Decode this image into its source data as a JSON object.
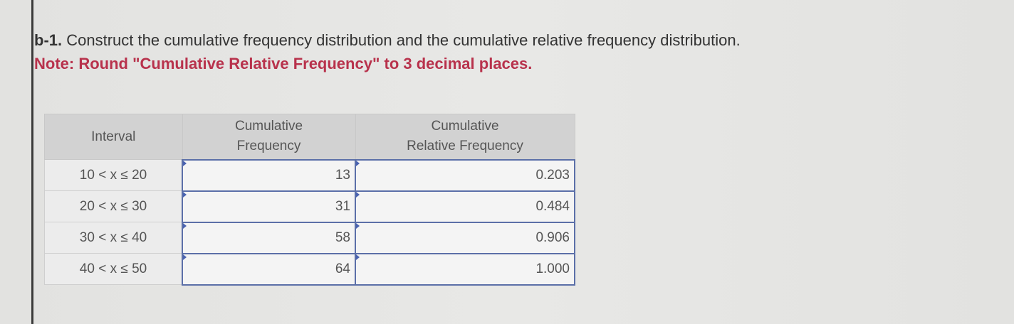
{
  "question": {
    "label": "b-1.",
    "text": " Construct the cumulative frequency distribution and the cumulative relative frequency distribution.",
    "note": "Note: Round \"Cumulative Relative Frequency\" to 3 decimal places."
  },
  "table": {
    "headers": [
      "Interval",
      "Cumulative Frequency",
      "Cumulative Relative Frequency"
    ],
    "rows": [
      {
        "interval": "10 < x ≤ 20",
        "cum_freq": "13",
        "cum_rel_freq": "0.203"
      },
      {
        "interval": "20 < x ≤ 30",
        "cum_freq": "31",
        "cum_rel_freq": "0.484"
      },
      {
        "interval": "30 < x ≤ 40",
        "cum_freq": "58",
        "cum_rel_freq": "0.906"
      },
      {
        "interval": "40 < x ≤ 50",
        "cum_freq": "64",
        "cum_rel_freq": "1.000"
      }
    ]
  },
  "colors": {
    "note": "#b8324c",
    "input_border": "#5b6fa8"
  }
}
